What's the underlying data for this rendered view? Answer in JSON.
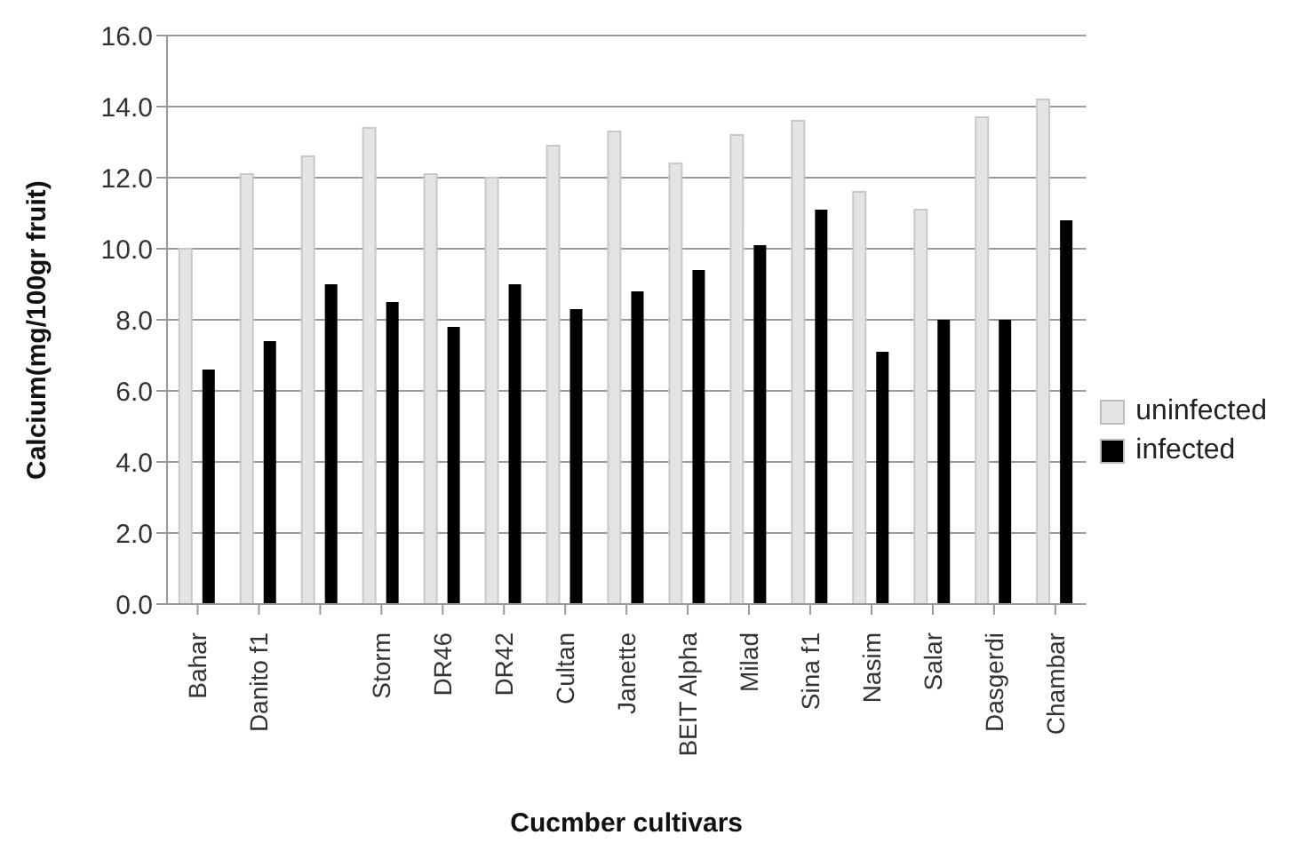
{
  "chart_data": {
    "type": "bar",
    "xlabel": "Cucmber cultivars",
    "ylabel": "Calcium(mg/100gr fruit)",
    "categories": [
      "Bahar",
      "Danito f1",
      null,
      "Storm",
      "DR46",
      "DR42",
      "Cultan",
      "Janette",
      "BEIT Alpha",
      "Milad",
      "Sina f1",
      "Nasim",
      "Salar",
      "Dasgerdi",
      "Chambar"
    ],
    "series": [
      {
        "name": "uninfected",
        "color": "#e4e4e4",
        "values": [
          10.0,
          12.1,
          12.6,
          13.4,
          12.1,
          12.0,
          12.9,
          13.3,
          12.4,
          13.2,
          13.6,
          11.6,
          11.1,
          13.7,
          14.2
        ]
      },
      {
        "name": "infected",
        "color": "#000000",
        "values": [
          6.6,
          7.4,
          9.0,
          8.5,
          7.8,
          9.0,
          8.3,
          8.8,
          9.4,
          10.1,
          11.1,
          7.1,
          8.0,
          8.0,
          10.8
        ]
      }
    ],
    "ylim": [
      0,
      16
    ],
    "yticks": [
      {
        "value": 0,
        "label": "0.0"
      },
      {
        "value": 2,
        "label": "2.0"
      },
      {
        "value": 4,
        "label": "4.0"
      },
      {
        "value": 6,
        "label": "6.0"
      },
      {
        "value": 8,
        "label": "8.0"
      },
      {
        "value": 10,
        "label": "10.0"
      },
      {
        "value": 12,
        "label": "12.0"
      },
      {
        "value": 14,
        "label": "14.0"
      },
      {
        "value": 16,
        "label": "16.0"
      }
    ],
    "grid": "y",
    "legend": "right"
  }
}
